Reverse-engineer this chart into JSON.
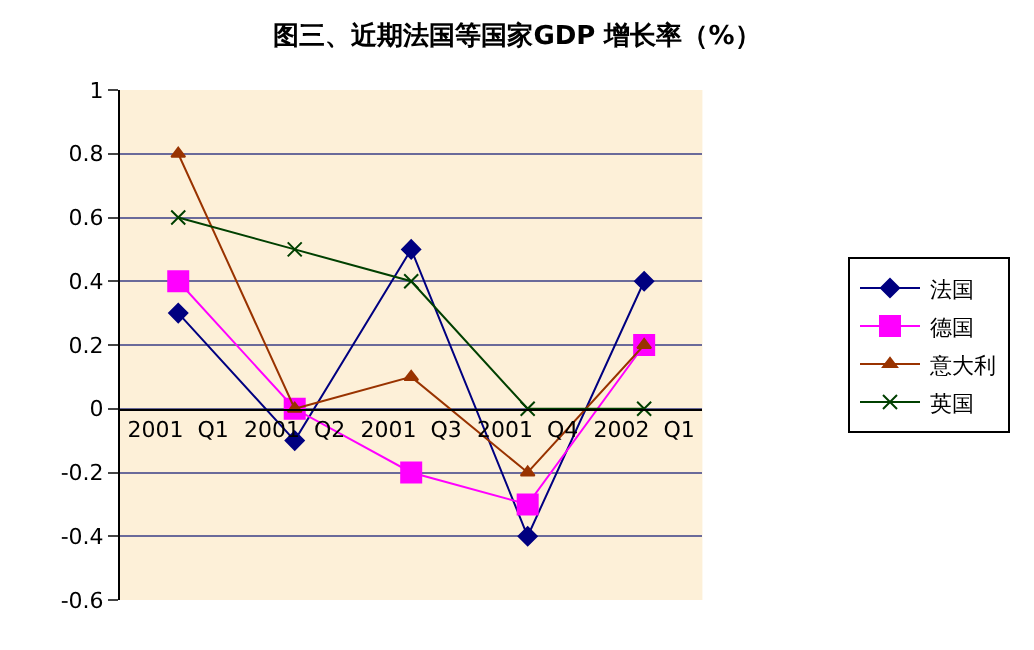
{
  "chart_data": {
    "type": "line",
    "title": "图三、近期法国等国家GDP 增长率（%）",
    "categories": [
      "2001  Q1",
      "2001  Q2",
      "2001  Q3",
      "2001  Q4",
      "2002  Q1"
    ],
    "series": [
      {
        "name": "法国",
        "color": "#000080",
        "marker": "diamond",
        "values": [
          0.3,
          -0.1,
          0.5,
          -0.4,
          0.4
        ]
      },
      {
        "name": "德国",
        "color": "#ff00ff",
        "marker": "square",
        "values": [
          0.4,
          0,
          -0.2,
          -0.3,
          0.2
        ]
      },
      {
        "name": "意大利",
        "color": "#993300",
        "marker": "triangle",
        "values": [
          0.8,
          0,
          0.1,
          -0.2,
          0.2
        ]
      },
      {
        "name": "英国",
        "color": "#004000",
        "marker": "cross",
        "values": [
          0.6,
          0.5,
          0.4,
          0,
          0
        ]
      }
    ],
    "ylim": [
      -0.6,
      1
    ],
    "yticks": [
      -0.6,
      -0.4,
      -0.2,
      0,
      0.2,
      0.4,
      0.6,
      0.8,
      1
    ],
    "grid": "y",
    "legend": "right",
    "line_style": "solid"
  }
}
